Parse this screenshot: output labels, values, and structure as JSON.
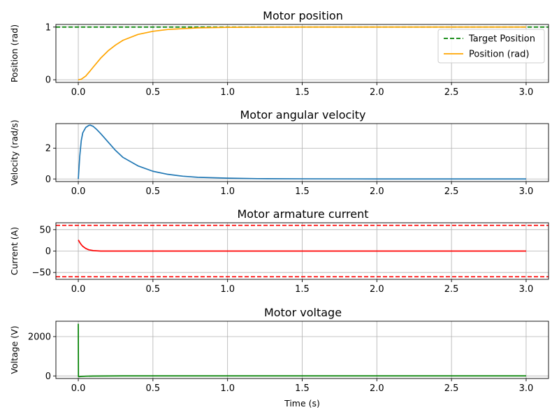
{
  "chart_data": [
    {
      "type": "line",
      "title": "Motor position",
      "xlabel": "",
      "ylabel": "Position (rad)",
      "xlim": [
        -0.15,
        3.15
      ],
      "ylim": [
        -0.05,
        1.05
      ],
      "xticks": [
        0.0,
        0.5,
        1.0,
        1.5,
        2.0,
        2.5,
        3.0
      ],
      "xtick_labels": [
        "0.0",
        "0.5",
        "1.0",
        "1.5",
        "2.0",
        "2.5",
        "3.0"
      ],
      "yticks": [
        0,
        1
      ],
      "ytick_labels": [
        "0",
        "1"
      ],
      "grid": true,
      "legend": "top-right",
      "series": [
        {
          "name": "Target Position",
          "color": "#008000",
          "dash": "dashed",
          "hline": 1.0,
          "x": [
            -0.15,
            3.15
          ],
          "y": [
            1.0,
            1.0
          ]
        },
        {
          "name": "Position (rad)",
          "color": "#FFA500",
          "x": [
            0.0,
            0.02,
            0.05,
            0.08,
            0.1,
            0.15,
            0.2,
            0.25,
            0.3,
            0.4,
            0.5,
            0.6,
            0.8,
            1.0,
            1.5,
            2.0,
            2.5,
            3.0
          ],
          "y": [
            0.0,
            0.01,
            0.07,
            0.17,
            0.24,
            0.41,
            0.55,
            0.66,
            0.75,
            0.86,
            0.92,
            0.955,
            0.985,
            0.995,
            1.0,
            1.0,
            1.0,
            1.0
          ]
        }
      ]
    },
    {
      "type": "line",
      "title": "Motor angular velocity",
      "xlabel": "",
      "ylabel": "Velocity (rad/s)",
      "xlim": [
        -0.15,
        3.15
      ],
      "ylim": [
        -0.17,
        3.6
      ],
      "xticks": [
        0.0,
        0.5,
        1.0,
        1.5,
        2.0,
        2.5,
        3.0
      ],
      "xtick_labels": [
        "0.0",
        "0.5",
        "1.0",
        "1.5",
        "2.0",
        "2.5",
        "3.0"
      ],
      "yticks": [
        0,
        2
      ],
      "ytick_labels": [
        "0",
        "2"
      ],
      "grid": true,
      "series": [
        {
          "name": "",
          "color": "#1f77b4",
          "x": [
            0.0,
            0.01,
            0.02,
            0.03,
            0.05,
            0.07,
            0.08,
            0.1,
            0.12,
            0.15,
            0.2,
            0.25,
            0.3,
            0.4,
            0.5,
            0.6,
            0.7,
            0.8,
            1.0,
            1.2,
            1.5,
            2.0,
            2.5,
            3.0
          ],
          "y": [
            0.0,
            1.5,
            2.5,
            3.0,
            3.35,
            3.48,
            3.5,
            3.42,
            3.25,
            2.95,
            2.4,
            1.85,
            1.4,
            0.85,
            0.5,
            0.3,
            0.18,
            0.11,
            0.05,
            0.02,
            0.01,
            0.0,
            0.0,
            0.0
          ]
        }
      ]
    },
    {
      "type": "line",
      "title": "Motor armature current",
      "xlabel": "",
      "ylabel": "Current (A)",
      "xlim": [
        -0.15,
        3.15
      ],
      "ylim": [
        -66,
        66
      ],
      "xticks": [
        0.0,
        0.5,
        1.0,
        1.5,
        2.0,
        2.5,
        3.0
      ],
      "xtick_labels": [
        "0.0",
        "0.5",
        "1.0",
        "1.5",
        "2.0",
        "2.5",
        "3.0"
      ],
      "yticks": [
        50,
        0,
        -50
      ],
      "ytick_labels": [
        "50",
        "0",
        "−50"
      ],
      "grid": true,
      "series": [
        {
          "name": "",
          "color": "#FF0000",
          "dash": "dashed",
          "hline": 60,
          "x": [
            -0.15,
            3.15
          ],
          "y": [
            60,
            60
          ]
        },
        {
          "name": "",
          "color": "#FF0000",
          "dash": "dashed",
          "hline": -60,
          "x": [
            -0.15,
            3.15
          ],
          "y": [
            -60,
            -60
          ]
        },
        {
          "name": "",
          "color": "#FF0000",
          "x": [
            0.0,
            0.01,
            0.02,
            0.03,
            0.05,
            0.07,
            0.1,
            0.15,
            0.2,
            0.3,
            0.5,
            1.0,
            2.0,
            3.0
          ],
          "y": [
            26,
            20,
            15,
            11,
            6,
            3,
            1,
            0,
            0,
            0,
            0,
            0,
            0,
            0
          ]
        }
      ]
    },
    {
      "type": "line",
      "title": "Motor voltage",
      "xlabel": "Time (s)",
      "ylabel": "Voltage (V)",
      "xlim": [
        -0.15,
        3.15
      ],
      "ylim": [
        -130,
        2780
      ],
      "xticks": [
        0.0,
        0.5,
        1.0,
        1.5,
        2.0,
        2.5,
        3.0
      ],
      "xtick_labels": [
        "0.0",
        "0.5",
        "1.0",
        "1.5",
        "2.0",
        "2.5",
        "3.0"
      ],
      "yticks": [
        2000,
        0
      ],
      "ytick_labels": [
        "2000",
        "0"
      ],
      "grid": true,
      "series": [
        {
          "name": "",
          "color": "#008000",
          "x": [
            0.0,
            0.001,
            0.005,
            0.02,
            0.05,
            0.1,
            0.2,
            0.3,
            0.5,
            1.0,
            2.0,
            3.0
          ],
          "y": [
            2650,
            -30,
            -40,
            -25,
            -12,
            -5,
            0,
            2,
            3,
            3,
            3,
            3
          ]
        }
      ]
    }
  ]
}
